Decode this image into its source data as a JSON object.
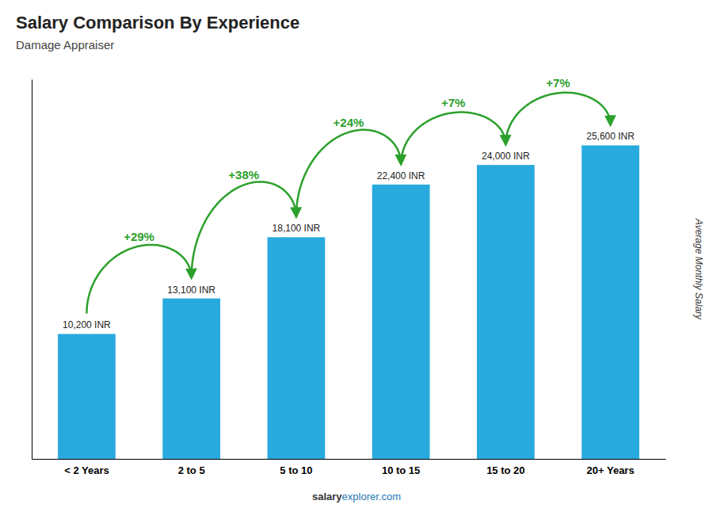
{
  "chart_data": {
    "type": "bar",
    "title": "Salary Comparison By Experience",
    "subtitle": "Damage Appraiser",
    "ylabel": "Average Monthly Salary",
    "categories": [
      "< 2 Years",
      "2 to 5",
      "5 to 10",
      "10 to 15",
      "15 to 20",
      "20+ Years"
    ],
    "values": [
      10200,
      13100,
      18100,
      22400,
      24000,
      25600
    ],
    "value_labels": [
      "10,200 INR",
      "13,100 INR",
      "18,100 INR",
      "22,400 INR",
      "24,000 INR",
      "25,600 INR"
    ],
    "data_labels": true,
    "color": "#29AADE",
    "ylim": [
      0,
      31000
    ],
    "tick_labels": "x",
    "annotations": [
      {
        "text": "+29%",
        "from": 0,
        "to": 1
      },
      {
        "text": "+38%",
        "from": 1,
        "to": 2
      },
      {
        "text": "+24%",
        "from": 2,
        "to": 3
      },
      {
        "text": "+7%",
        "from": 3,
        "to": 4
      },
      {
        "text": "+7%",
        "from": 4,
        "to": 5
      }
    ],
    "watermark": [
      "salary",
      "explorer.com"
    ]
  }
}
